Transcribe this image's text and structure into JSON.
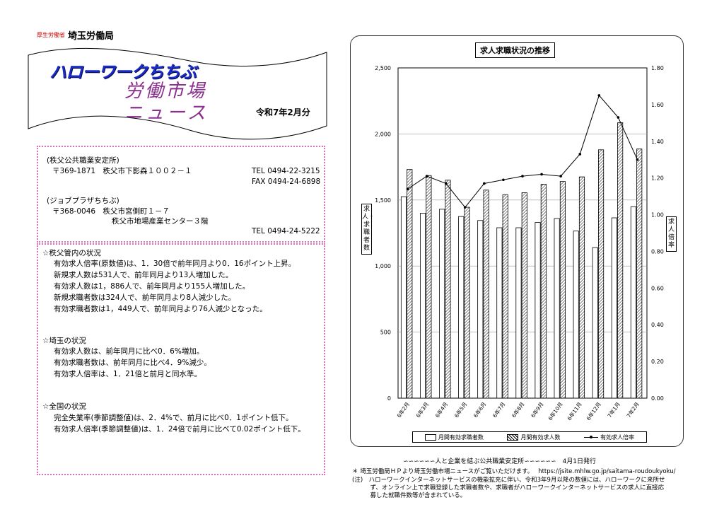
{
  "header": {
    "logo_mark": "厚生労働省",
    "org": "埼玉労働局"
  },
  "banner": {
    "title": "ハローワークちちぶ",
    "sub1": "労働市場",
    "sub2": "ニュース",
    "issue": "令和7年2月分"
  },
  "offices": [
    {
      "name": "(秩父公共職業安定所)",
      "addr1": "〒369-1871　秩父市下影森１００２－１",
      "addr2": "",
      "tel": "TEL 0494-22-3215",
      "fax": "FAX 0494-24-6898"
    },
    {
      "name": "(ジョブプラザちちぶ)",
      "addr1": "〒368-0046　秩父市宮側町１－７",
      "addr2": "秩父市地場産業センター３階",
      "tel": "TEL 0494-24-5222",
      "fax": ""
    }
  ],
  "sections": [
    {
      "heading": "☆秩父管内の状況",
      "lines": [
        "有効求人倍率(原数値)は、1．30倍で前年同月より0．16ポイント上昇。",
        "新規求人数は531人で、前年同月より13人増加した。",
        "有効求人数は1，886人で、前年同月より155人増加した。",
        "新規求職者数は324人で、前年同月より8人減少した。",
        "有効求職者数は1，449人で、前年同月より76人減少となった。"
      ]
    },
    {
      "heading": "☆埼玉の状況",
      "lines": [
        "有効求人数は、前年同月に比べ0．6%増加。",
        "有効求職者数は、前年同月に比べ4．9%減少。",
        "有効求人倍率は、1．21倍と前月と同水準。"
      ]
    },
    {
      "heading": "☆全国の状況",
      "lines": [
        "完全失業率(季節調整値)は、2．4%で、前月に比べ0．1ポイント低下。",
        "有効求人倍率(季節調整値)は、1．24倍で前月に比べて0.02ポイント低下。"
      ]
    }
  ],
  "chart_data": {
    "type": "bar",
    "title": "求人求職状況の推移",
    "ylabel_left": "求人・求職者数",
    "ylabel_right": "求人倍率",
    "categories": [
      "6年2月",
      "6年3月",
      "6年4月",
      "6年5月",
      "6年6月",
      "6年7月",
      "6年8月",
      "6年9月",
      "6年10月",
      "6年11月",
      "6年12月",
      "7年1月",
      "7年2月"
    ],
    "left_axis": {
      "min": 0,
      "max": 2500,
      "ticks": [
        "0",
        "500",
        "1,000",
        "1,500",
        "2,000",
        "2,500"
      ]
    },
    "right_axis": {
      "min": 0,
      "max": 1.8,
      "ticks": [
        "0.00",
        "0.20",
        "0.40",
        "0.60",
        "0.80",
        "1.00",
        "1.20",
        "1.40",
        "1.60",
        "1.80"
      ]
    },
    "series": [
      {
        "name": "月間有効求職者数",
        "kind": "bar",
        "values": [
          1525,
          1400,
          1430,
          1375,
          1345,
          1290,
          1290,
          1330,
          1360,
          1265,
          1140,
          1365,
          1449
        ]
      },
      {
        "name": "月間有効求人数",
        "kind": "bar-hatched",
        "values": [
          1731,
          1685,
          1650,
          1445,
          1575,
          1540,
          1555,
          1620,
          1640,
          1675,
          1880,
          2085,
          1886
        ]
      },
      {
        "name": "有効求人倍率",
        "kind": "line",
        "values": [
          1.14,
          1.21,
          1.17,
          1.04,
          1.17,
          1.19,
          1.21,
          1.22,
          1.21,
          1.33,
          1.65,
          1.53,
          1.3
        ]
      }
    ],
    "grid": true,
    "legend": "bottom"
  },
  "footer": {
    "slogan": "∽∽∽∽∽∽人と企業を結ぶ公共職業安定所∽∽∽∽∽∽　4月1日発行",
    "link": "＊ 埼玉労働局ＨＰより埼玉労働市場ニュースがご覧いただけます。　 https://jsite.mhlw.go.jp/saitama-roudoukyoku/",
    "note1": "(注)　ハローワークインターネットサービスの機能拡充に伴い、令和3年9月以降の数値には、ハローワークに来所せ",
    "note2": "　　　ず、オンライン上で求職登録した求職者数や、求職者がハローワークインターネットサービスの求人に直接応",
    "note3": "　　　募した就職件数等が含まれている。"
  }
}
